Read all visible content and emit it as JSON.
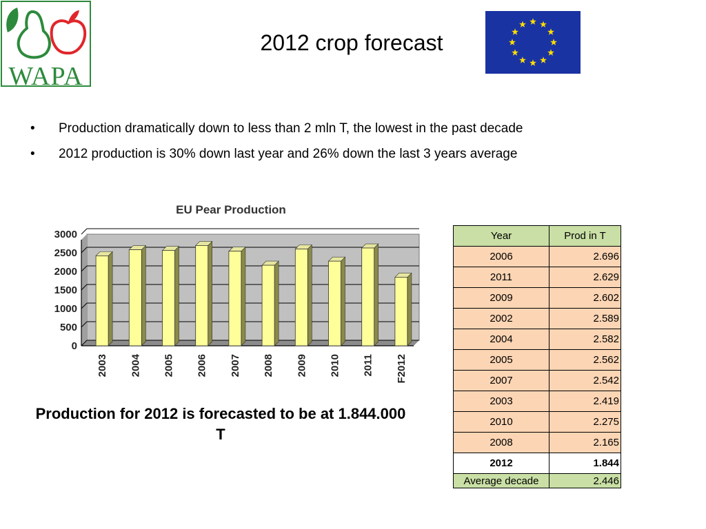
{
  "header": {
    "logo_text": "WAPA",
    "title": "2012 crop forecast"
  },
  "bullets": [
    "Production dramatically down to less than 2 mln T, the lowest in the past decade",
    "2012 production is 30% down last year and 26% down the last 3 years average"
  ],
  "bullet_glyph": "•",
  "chart_data": {
    "type": "bar",
    "title": "EU Pear Production",
    "categories": [
      "2003",
      "2004",
      "2005",
      "2006",
      "2007",
      "2008",
      "2009",
      "2010",
      "2011",
      "F2012"
    ],
    "values": [
      2419,
      2582,
      2562,
      2696,
      2542,
      2165,
      2602,
      2275,
      2629,
      1844
    ],
    "xlabel": "",
    "ylabel": "",
    "ylim": [
      0,
      3000
    ],
    "yticks": [
      "0",
      "500",
      "1000",
      "1500",
      "2000",
      "2500",
      "3000"
    ],
    "grid": true,
    "bar_color": "#ffff99",
    "background_color": "#c0c0c0"
  },
  "caption": "Production for 2012 is forecasted to be at 1.844.000 T",
  "table": {
    "headers": [
      "Year",
      "Prod in T"
    ],
    "rows": [
      [
        "2006",
        "2.696"
      ],
      [
        "2011",
        "2.629"
      ],
      [
        "2009",
        "2.602"
      ],
      [
        "2002",
        "2.589"
      ],
      [
        "2004",
        "2.582"
      ],
      [
        "2005",
        "2.562"
      ],
      [
        "2007",
        "2.542"
      ],
      [
        "2003",
        "2.419"
      ],
      [
        "2010",
        "2.275"
      ],
      [
        "2008",
        "2.165"
      ]
    ],
    "total": [
      "2012",
      "1.844"
    ],
    "average": [
      "Average decade",
      "2.446"
    ]
  },
  "colors": {
    "logo_green": "#2d8a3c",
    "logo_red": "#e0262b",
    "eu_blue": "#1a33a3",
    "eu_star": "#ffdd00",
    "table_header": "#c9dfa5",
    "table_cell": "#fcd5b4"
  }
}
